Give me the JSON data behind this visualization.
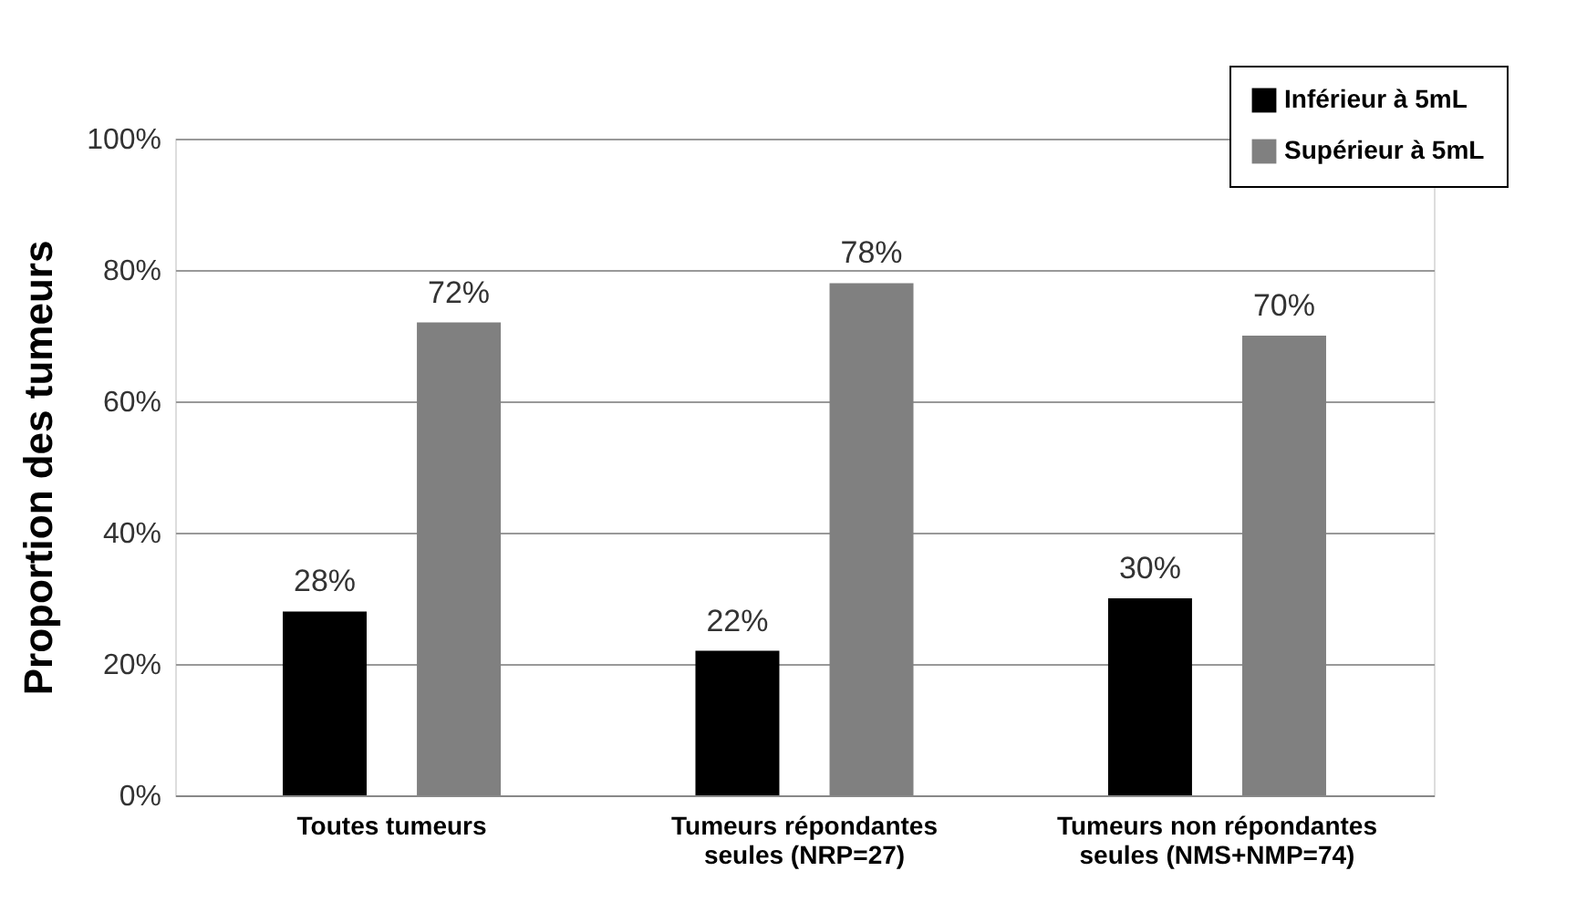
{
  "chart_data": {
    "type": "bar",
    "ylabel": "Proportion des tumeurs",
    "categories": [
      "Toutes tumeurs",
      "Tumeurs répondantes\nseules (NRP=27)",
      "Tumeurs non répondantes\nseules (NMS+NMP=74)"
    ],
    "series": [
      {
        "name": "Inférieur à 5mL",
        "color": "#000000",
        "values": [
          28,
          22,
          30
        ]
      },
      {
        "name": "Supérieur à 5mL",
        "color": "#808080",
        "values": [
          72,
          78,
          70
        ]
      }
    ],
    "ylim": [
      0,
      100
    ],
    "yticks": [
      {
        "value": 0,
        "label": "0%"
      },
      {
        "value": 20,
        "label": "20%"
      },
      {
        "value": 40,
        "label": "40%"
      },
      {
        "value": 60,
        "label": "60%"
      },
      {
        "value": 80,
        "label": "80%"
      },
      {
        "value": 100,
        "label": "100%"
      }
    ],
    "value_labels": [
      [
        "28%",
        "22%",
        "30%"
      ],
      [
        "72%",
        "78%",
        "70%"
      ]
    ],
    "grid": "y",
    "legend": "top right"
  }
}
